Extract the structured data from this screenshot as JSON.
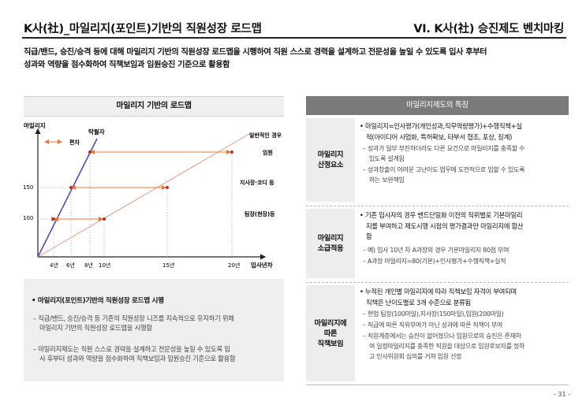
{
  "header": {
    "left_title": "K사(社)_마일리지(포인트)기반의 직원성장 로드맵",
    "right_title": "VI. K사(社) 승진제도 벤치마킹"
  },
  "intro": {
    "line1": "직급/밴드, 승진/승격 등에 대해 마일리지 기반의 직원성장 로드맵을 시행하여 직원 스스로 경력을 설계하고 전문성을 높일 수 있도록 입사 후부터",
    "line2": "성과와 역량을 점수화하여 직책보임과 임원승진 기준으로 활용함"
  },
  "roadmap": {
    "title": "마일리지 기반의 로드맵",
    "ylabel": "마일리지",
    "xlabel": "입사년차",
    "y_ticks": [
      "150",
      "100"
    ],
    "x_ticks": [
      "4년",
      "6년",
      "8년",
      "10년",
      "15년",
      "20년"
    ],
    "labels": {
      "fast": "탁월자",
      "normal": "일반적인 경우",
      "gap": "편차",
      "exec": "임원",
      "director": "지사장·코디 등",
      "team": "팀장(현장)등"
    },
    "colors": {
      "fast": "#4a4fc4",
      "normal": "#e59a86",
      "arrow": "#e07a3a",
      "dot": "#c62828"
    }
  },
  "summary": {
    "title": "• 마일리지(포인트)기반의 직원성장 로드맵 시행",
    "items": [
      [
        "– 직급/밴드, 승진/승격 등 기존의 직원성장 니즈를 지속적으로 유지하기 위해",
        "마일리지 기반의 직원성장 로드맵을 시행함"
      ],
      [
        "– 마일리지제도는 직원 스스로 경력을 설계하고 전문성을 높일 수 있도록 입",
        "사 후부터 성과와 역량을 점수화하여 직책보임과 임원승진 기준으로 활용함"
      ]
    ]
  },
  "table": {
    "header": "마일리지제도의 특징",
    "rows": [
      {
        "label": [
          "마일리지",
          "산정요소"
        ],
        "bullet": [
          "• 마일리지=인사평가(개인성과,직무역량평가)+수행직책+실",
          "적(아이디어 사업화, 특허확보, 타부서 협조, 포상, 징계)"
        ],
        "details": [
          [
            "– 성과가 일부 부진하더라도 다른 요건으로 마일리지를 충족할 수",
            "있도록 설계됨"
          ],
          [
            "– 성과창출이 어려운 고난이도 업무에 도전적으로 임할 수 있도록",
            "하는 보완책임"
          ]
        ]
      },
      {
        "label": [
          "마일리지",
          "소급적용"
        ],
        "bullet": [
          "• 기존 입사자의 경우 밴드단일화 이전의 직위별로 기본마일리",
          "지를 부여하고 제도시행 시점의 평가결과만 마일리지에 합산",
          "함"
        ],
        "details": [
          [
            "– 예) 입사 10년 차 A과장의 경우 기본마일리지 80점 부여"
          ],
          [
            "– A과장 마일리지=80(기본)+인사평가+수행직책+실적"
          ]
        ]
      },
      {
        "label": [
          "마일리지에",
          "따른",
          "직책보임"
        ],
        "bullet": [
          "• 누적된 개인별 마일리지에 따라 직책보임 자격이 부여되며",
          "직책은 난이도별로 3개 수준으로 분류됨"
        ],
        "details": [
          [
            "– 현업 팀장(100마일),지사장(150마일),임원(200마일)"
          ],
          [
            "– 직급에 따른 직위부여가 아닌 성과에 따른 직책이 부여"
          ],
          [
            "– 직원계층에서는 승진이 없어졌으나 임원으로의 승진은 존재하",
            "여 일정마일리지를 충족한 직원을 대상으로 임원후보자를 정하",
            "고 인사위원회 심의를 거쳐 임원 선정"
          ]
        ]
      }
    ]
  },
  "page_number": "- 31 -"
}
